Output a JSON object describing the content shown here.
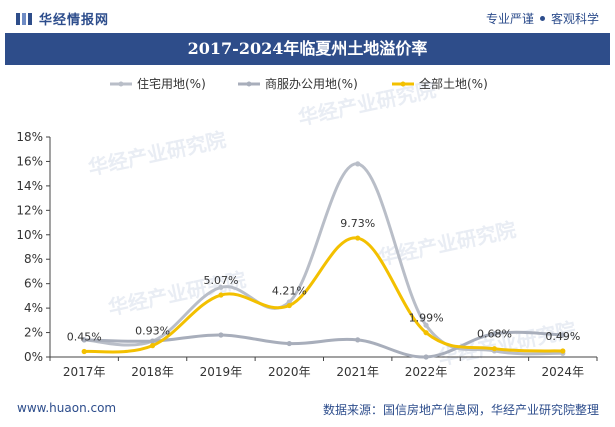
{
  "header": {
    "brand": "华经情报网",
    "tagline_left": "专业严谨",
    "tagline_right": "客观科学"
  },
  "footer": {
    "url": "www.huaon.com",
    "source": "数据来源：国信房地产信息网，华经产业研究院整理"
  },
  "watermark": "华经产业研究院",
  "colors": {
    "brand": "#2e4d8a",
    "residential": "#b9bec8",
    "commercial": "#a8aebb",
    "total": "#f3c000",
    "axis": "#333333"
  },
  "chart_data": {
    "type": "line",
    "title": "2017-2024年临夏州土地溢价率",
    "categories": [
      "2017年",
      "2018年",
      "2019年",
      "2020年",
      "2021年",
      "2022年",
      "2023年",
      "2024年"
    ],
    "ylim": [
      0,
      18
    ],
    "yticks": [
      "0%",
      "2%",
      "4%",
      "6%",
      "8%",
      "10%",
      "12%",
      "14%",
      "16%",
      "18%"
    ],
    "ytick_values": [
      0,
      2,
      4,
      6,
      8,
      10,
      12,
      14,
      16,
      18
    ],
    "legend_position": "top",
    "grid": false,
    "smooth": true,
    "series": [
      {
        "name": "住宅用地(%)",
        "color": "#b9bec8",
        "values": [
          1.4,
          1.3,
          5.7,
          4.5,
          15.8,
          2.6,
          0.5,
          0.3
        ]
      },
      {
        "name": "商服办公用地(%)",
        "color": "#a8aebb",
        "values": [
          1.4,
          1.3,
          1.8,
          1.1,
          1.4,
          0.0,
          1.9,
          1.8
        ]
      },
      {
        "name": "全部土地(%)",
        "color": "#f3c000",
        "values": [
          0.45,
          0.93,
          5.07,
          4.21,
          9.73,
          1.99,
          0.68,
          0.49
        ],
        "labels": [
          "0.45%",
          "0.93%",
          "5.07%",
          "4.21%",
          "9.73%",
          "1.99%",
          "0.68%",
          "0.49%"
        ]
      }
    ]
  }
}
